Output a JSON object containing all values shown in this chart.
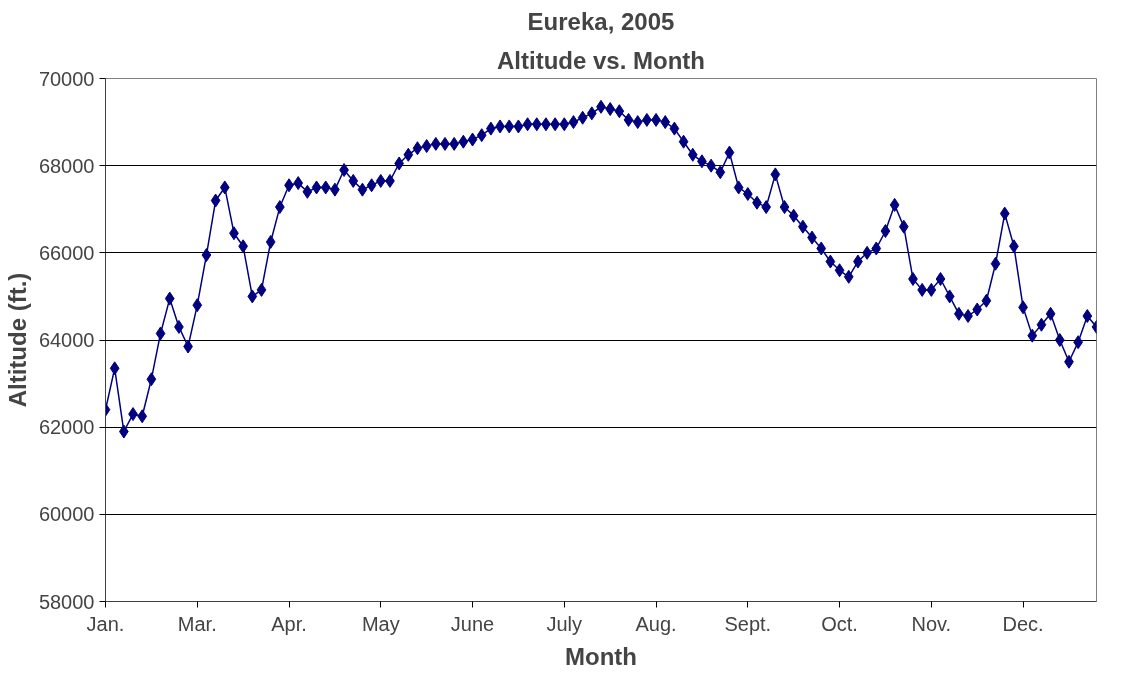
{
  "chart_data": {
    "type": "line",
    "title": "Eureka, 2005",
    "subtitle": "Altitude vs. Month",
    "xlabel": "Month",
    "ylabel": "Altitude (ft.)",
    "categories": [
      "Jan.",
      null,
      null,
      null,
      null,
      null,
      null,
      null,
      null,
      null,
      "Mar.",
      null,
      null,
      null,
      null,
      null,
      null,
      null,
      null,
      null,
      "Apr.",
      null,
      null,
      null,
      null,
      null,
      null,
      null,
      null,
      null,
      "May",
      null,
      null,
      null,
      null,
      null,
      null,
      null,
      null,
      null,
      "June",
      null,
      null,
      null,
      null,
      null,
      null,
      null,
      null,
      null,
      "July",
      null,
      null,
      null,
      null,
      null,
      null,
      null,
      null,
      null,
      "Aug.",
      null,
      null,
      null,
      null,
      null,
      null,
      null,
      null,
      null,
      "Sept.",
      null,
      null,
      null,
      null,
      null,
      null,
      null,
      null,
      null,
      "Oct.",
      null,
      null,
      null,
      null,
      null,
      null,
      null,
      null,
      null,
      "Nov.",
      null,
      null,
      null,
      null,
      null,
      null,
      null,
      null,
      null,
      "Dec.",
      null,
      null,
      null,
      null,
      null,
      null,
      null,
      null
    ],
    "series": [
      {
        "color": "#000080",
        "values": [
          62400,
          63350,
          61900,
          62300,
          62250,
          63100,
          64150,
          64950,
          64300,
          63850,
          64800,
          65950,
          67200,
          67500,
          66450,
          66150,
          65000,
          65150,
          66250,
          67050,
          67550,
          67600,
          67400,
          67500,
          67500,
          67450,
          67900,
          67650,
          67450,
          67550,
          67650,
          67650,
          68050,
          68250,
          68400,
          68450,
          68500,
          68500,
          68500,
          68550,
          68600,
          68700,
          68850,
          68900,
          68900,
          68900,
          68950,
          68950,
          68950,
          68950,
          68950,
          69000,
          69100,
          69200,
          69350,
          69300,
          69250,
          69050,
          69000,
          69050,
          69050,
          69000,
          68850,
          68550,
          68250,
          68100,
          68000,
          67850,
          68300,
          67500,
          67350,
          67150,
          67050,
          67800,
          67050,
          66850,
          66600,
          66350,
          66100,
          65800,
          65600,
          65450,
          65800,
          66000,
          66100,
          66500,
          67100,
          66600,
          65400,
          65150,
          65150,
          65400,
          65000,
          64600,
          64550,
          64700,
          64900,
          65750,
          66900,
          66150,
          64750,
          64100,
          64350,
          64600,
          64000,
          63500,
          63950,
          64550,
          64300
        ]
      }
    ],
    "ylim": [
      58000,
      70000
    ],
    "yticks": [
      58000,
      60000,
      62000,
      64000,
      66000,
      68000,
      70000
    ],
    "grid": "y",
    "marker": "diamond",
    "line_style": "solid"
  }
}
